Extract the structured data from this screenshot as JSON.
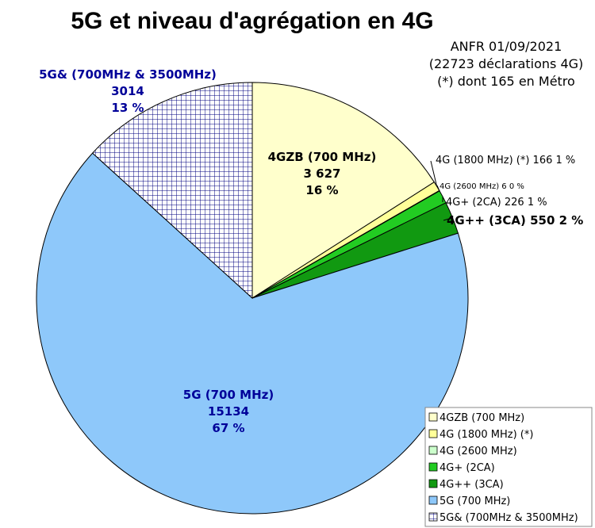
{
  "chart_data": {
    "type": "pie",
    "title": "5G et niveau d'agrégation en 4G",
    "subtitle": [
      "ANFR 01/09/2021",
      "(22723 déclarations 4G)",
      "(*) dont 165 en Métro"
    ],
    "slices": [
      {
        "legend": "4GZB (700 MHz)",
        "value": 3627,
        "percent": "16 %",
        "color": "#ffffcc",
        "label_lines": [
          "4GZB (700 MHz)",
          "3 627",
          "16 %"
        ],
        "label_color": "#000000"
      },
      {
        "legend": "4G (1800 MHz) (*)",
        "value": 166,
        "percent": "1 %",
        "color": "#ffff99",
        "label_lines": [
          "4G (1800 MHz) (*) 166 1 %"
        ]
      },
      {
        "legend": "4G (2600 MHz)",
        "value": 6,
        "percent": "0 %",
        "color": "#ccffcc",
        "label_lines": [
          "4G (2600 MHz) 6 0 %"
        ]
      },
      {
        "legend": "4G+ (2CA)",
        "value": 226,
        "percent": "1 %",
        "color": "#22cc22",
        "label_lines": [
          "4G+ (2CA) 226 1 %"
        ]
      },
      {
        "legend": "4G++ (3CA)",
        "value": 550,
        "percent": "2 %",
        "color": "#119911",
        "label_lines": [
          "4G++ (3CA) 550 2 %"
        ]
      },
      {
        "legend": "5G (700 MHz)",
        "value": 15134,
        "percent": "67 %",
        "color": "#8ec8fa",
        "label_lines": [
          "5G (700 MHz)",
          "15134",
          "67 %"
        ],
        "label_color": "#000099"
      },
      {
        "legend": "5G& (700MHz & 3500MHz)",
        "value": 3014,
        "percent": "13 %",
        "color": "#ffffff",
        "pattern": "grid",
        "label_lines": [
          "5G& (700MHz & 3500MHz)",
          "3014",
          "13 %"
        ],
        "label_color": "#000099"
      }
    ],
    "legend_position": "bottom-right"
  }
}
